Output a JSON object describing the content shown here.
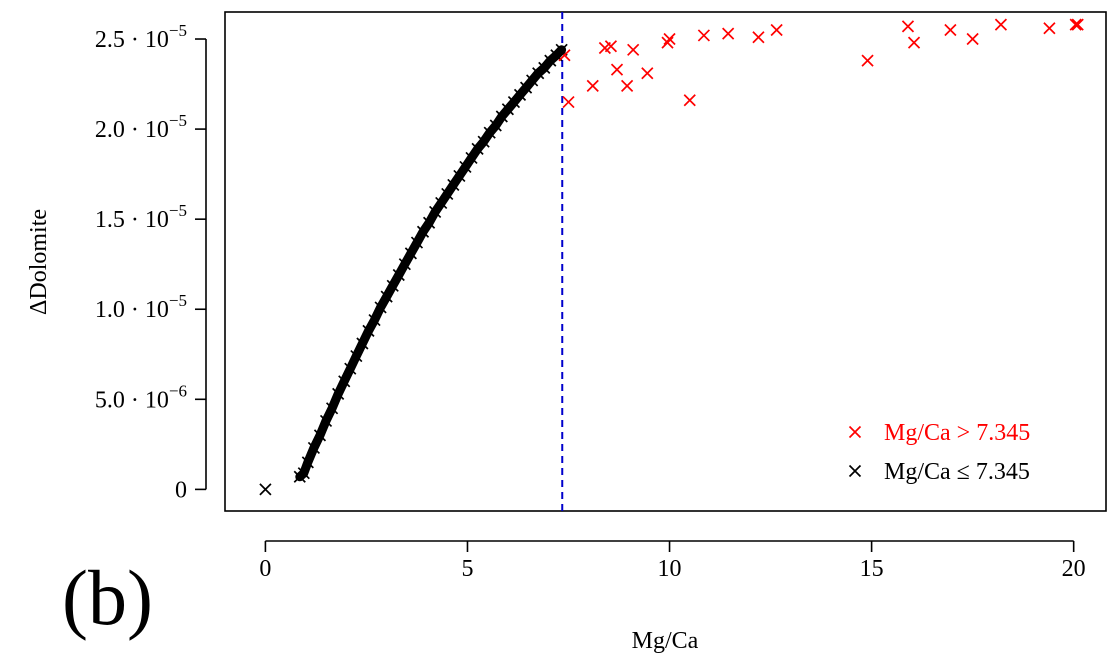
{
  "panel_label": "(b)",
  "chart_data": {
    "type": "scatter",
    "title": "",
    "xlabel": "Mg/Ca",
    "ylabel": "ΔDolomite",
    "xlim": [
      -1,
      20.8
    ],
    "ylim": [
      -1.2e-06,
      2.65e-05
    ],
    "log_scale": false,
    "grid": false,
    "legend_position": "bottom-right",
    "colors": {
      "above": "#ff0000",
      "below": "#000000",
      "threshold_line": "#0000cc"
    },
    "threshold": {
      "x": 7.345,
      "style": "dashed"
    },
    "x_ticks": [
      {
        "value": 0,
        "label": "0"
      },
      {
        "value": 5,
        "label": "5"
      },
      {
        "value": 10,
        "label": "10"
      },
      {
        "value": 15,
        "label": "15"
      },
      {
        "value": 20,
        "label": "20"
      }
    ],
    "y_ticks": [
      {
        "value": 0,
        "mantissa": "0",
        "exp": ""
      },
      {
        "value": 5e-06,
        "mantissa": "5.0 · 10",
        "exp": "−6"
      },
      {
        "value": 1e-05,
        "mantissa": "1.0 · 10",
        "exp": "−5"
      },
      {
        "value": 1.5e-05,
        "mantissa": "1.5 · 10",
        "exp": "−5"
      },
      {
        "value": 2e-05,
        "mantissa": "2.0 · 10",
        "exp": "−5"
      },
      {
        "value": 2.5e-05,
        "mantissa": "2.5 · 10",
        "exp": "−5"
      }
    ],
    "series": [
      {
        "name": "Mg/Ca > 7.345",
        "color": "#ff0000",
        "marker": "x",
        "points": [
          [
            7.4,
            2.41e-05
          ],
          [
            7.5,
            2.15e-05
          ],
          [
            8.1,
            2.24e-05
          ],
          [
            8.4,
            2.45e-05
          ],
          [
            8.55,
            2.46e-05
          ],
          [
            8.7,
            2.33e-05
          ],
          [
            8.95,
            2.24e-05
          ],
          [
            9.1,
            2.44e-05
          ],
          [
            9.45,
            2.31e-05
          ],
          [
            9.95,
            2.48e-05
          ],
          [
            10.0,
            2.5e-05
          ],
          [
            10.5,
            2.16e-05
          ],
          [
            10.85,
            2.52e-05
          ],
          [
            11.45,
            2.53e-05
          ],
          [
            12.2,
            2.51e-05
          ],
          [
            12.65,
            2.55e-05
          ],
          [
            14.9,
            2.38e-05
          ],
          [
            15.9,
            2.57e-05
          ],
          [
            16.05,
            2.48e-05
          ],
          [
            16.95,
            2.55e-05
          ],
          [
            17.5,
            2.5e-05
          ],
          [
            18.2,
            2.58e-05
          ],
          [
            19.4,
            2.56e-05
          ],
          [
            20.05,
            2.58e-05
          ],
          [
            20.1,
            2.58e-05
          ]
        ]
      },
      {
        "name": "Mg/Ca ≤ 7.345",
        "color": "#000000",
        "marker": "x",
        "points": [
          [
            0,
            0
          ],
          [
            0.85,
            7e-07
          ],
          [
            0.95,
            9e-07
          ],
          [
            1.05,
            1.5e-06
          ],
          [
            1.2,
            2.3e-06
          ],
          [
            1.35,
            3e-06
          ],
          [
            1.5,
            3.8e-06
          ],
          [
            1.65,
            4.5e-06
          ],
          [
            1.8,
            5.3e-06
          ],
          [
            1.95,
            6e-06
          ],
          [
            2.1,
            6.7e-06
          ],
          [
            2.25,
            7.4e-06
          ],
          [
            2.4,
            8.1e-06
          ],
          [
            2.55,
            8.8e-06
          ],
          [
            2.7,
            9.4e-06
          ],
          [
            2.85,
            1.01e-05
          ],
          [
            3.0,
            1.07e-05
          ],
          [
            3.15,
            1.13e-05
          ],
          [
            3.3,
            1.19e-05
          ],
          [
            3.45,
            1.25e-05
          ],
          [
            3.6,
            1.31e-05
          ],
          [
            3.75,
            1.37e-05
          ],
          [
            3.9,
            1.43e-05
          ],
          [
            4.05,
            1.48e-05
          ],
          [
            4.2,
            1.54e-05
          ],
          [
            4.35,
            1.59e-05
          ],
          [
            4.5,
            1.64e-05
          ],
          [
            4.65,
            1.69e-05
          ],
          [
            4.8,
            1.74e-05
          ],
          [
            4.95,
            1.79e-05
          ],
          [
            5.1,
            1.84e-05
          ],
          [
            5.25,
            1.89e-05
          ],
          [
            5.4,
            1.93e-05
          ],
          [
            5.55,
            1.98e-05
          ],
          [
            5.7,
            2.02e-05
          ],
          [
            5.85,
            2.07e-05
          ],
          [
            6.0,
            2.11e-05
          ],
          [
            6.15,
            2.15e-05
          ],
          [
            6.3,
            2.19e-05
          ],
          [
            6.45,
            2.23e-05
          ],
          [
            6.6,
            2.27e-05
          ],
          [
            6.75,
            2.31e-05
          ],
          [
            6.9,
            2.34e-05
          ],
          [
            7.05,
            2.38e-05
          ],
          [
            7.2,
            2.41e-05
          ],
          [
            7.33,
            2.44e-05
          ]
        ]
      }
    ]
  }
}
